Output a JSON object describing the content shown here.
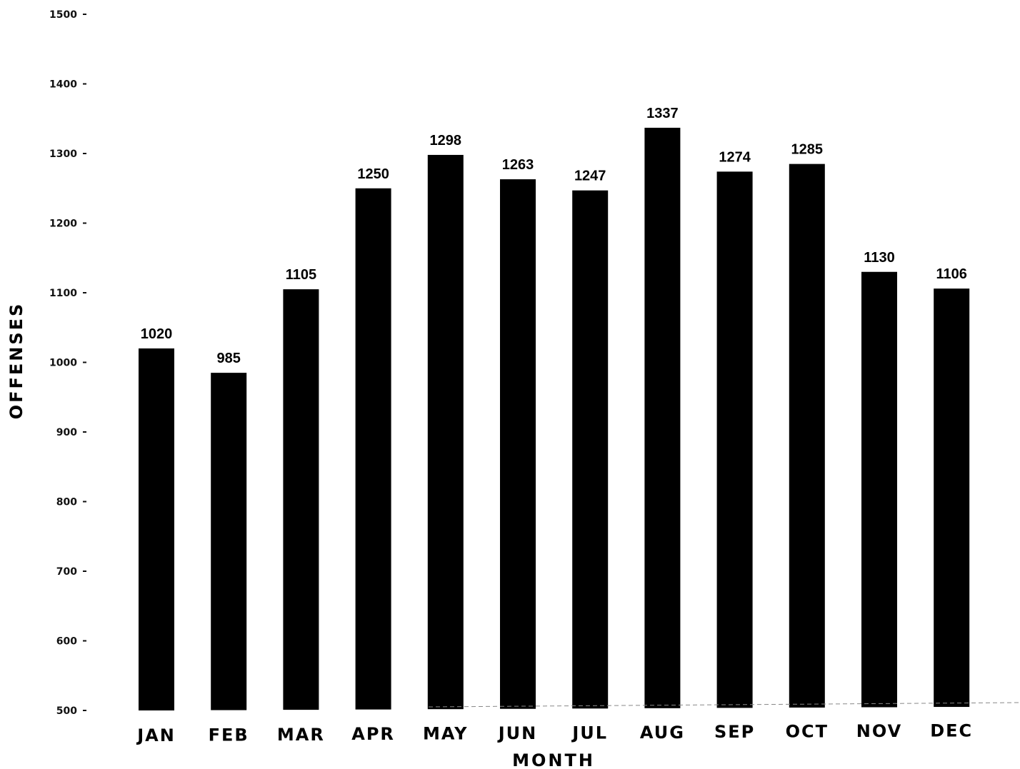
{
  "chart_data": {
    "type": "bar",
    "xlabel": "MONTH",
    "ylabel": "OFFENSES",
    "categories": [
      "JAN",
      "FEB",
      "MAR",
      "APR",
      "MAY",
      "JUN",
      "JUL",
      "AUG",
      "SEP",
      "OCT",
      "NOV",
      "DEC"
    ],
    "values": [
      1020,
      985,
      1105,
      1250,
      1298,
      1263,
      1247,
      1337,
      1274,
      1285,
      1130,
      1106
    ],
    "data_labels": [
      "1020",
      "985",
      "1105",
      "1250",
      "1298",
      "1263",
      "1247",
      "1337",
      "1274",
      "1285",
      "1130",
      "1106"
    ],
    "ylim": [
      500,
      1500
    ],
    "yticks": [
      500,
      600,
      700,
      800,
      900,
      1000,
      1100,
      1200,
      1300,
      1400,
      1500
    ],
    "ytick_labels": [
      "500",
      "600",
      "700",
      "800",
      "900",
      "1000",
      "1100",
      "1200",
      "1300",
      "1400",
      "1500"
    ],
    "grid": false,
    "legend": "none",
    "bar_color": "#000000"
  }
}
